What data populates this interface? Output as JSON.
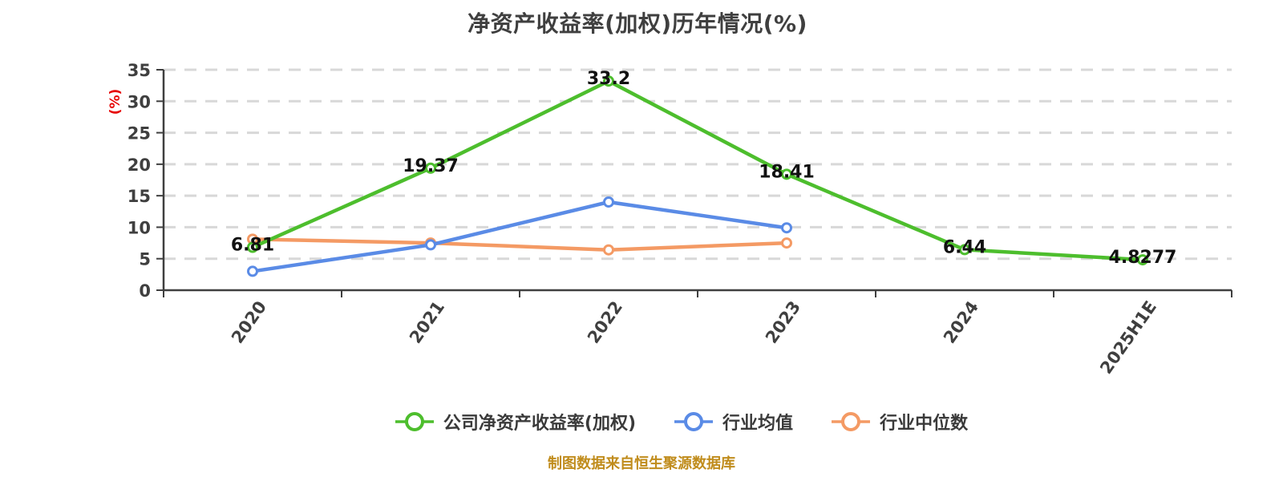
{
  "title": "净资产收益率(加权)历年情况(%)",
  "y_axis_unit_label": "(%)",
  "footer": "制图数据来自恒生聚源数据库",
  "colors": {
    "company": "#4dbe2d",
    "industry_avg": "#5a8be6",
    "industry_median": "#f49a64",
    "grid": "#d8d8d8",
    "axis": "#3f3f3f",
    "tick_label": "#3f3f3f",
    "value_label": "#111111",
    "unit_label": "#e60000",
    "footer": "#c08c1c",
    "marker_fill": "#ffffff",
    "background": "#ffffff"
  },
  "chart_data": {
    "type": "line",
    "title": "净资产收益率(加权)历年情况(%)",
    "ylabel": "(%)",
    "categories": [
      "2020",
      "2021",
      "2022",
      "2023",
      "2024",
      "2025H1E"
    ],
    "series": [
      {
        "name": "公司净资产收益率(加权)",
        "color_key": "company",
        "values": [
          6.81,
          19.37,
          33.2,
          18.41,
          6.44,
          4.8277
        ],
        "labels": [
          "6.81",
          "19.37",
          "33.2",
          "18.41",
          "6.44",
          "4.8277"
        ]
      },
      {
        "name": "行业均值",
        "color_key": "industry_avg",
        "values": [
          3.0,
          7.2,
          14.0,
          9.9
        ],
        "labels": []
      },
      {
        "name": "行业中位数",
        "color_key": "industry_median",
        "values": [
          8.1,
          7.5,
          6.4,
          7.5
        ],
        "labels": []
      }
    ],
    "ylim": [
      0,
      35
    ],
    "y_ticks": [
      0,
      5,
      10,
      15,
      20,
      25,
      30,
      35
    ],
    "grid": "dashed-horizontal",
    "legend_position": "bottom",
    "source_note": "制图数据来自恒生聚源数据库"
  }
}
